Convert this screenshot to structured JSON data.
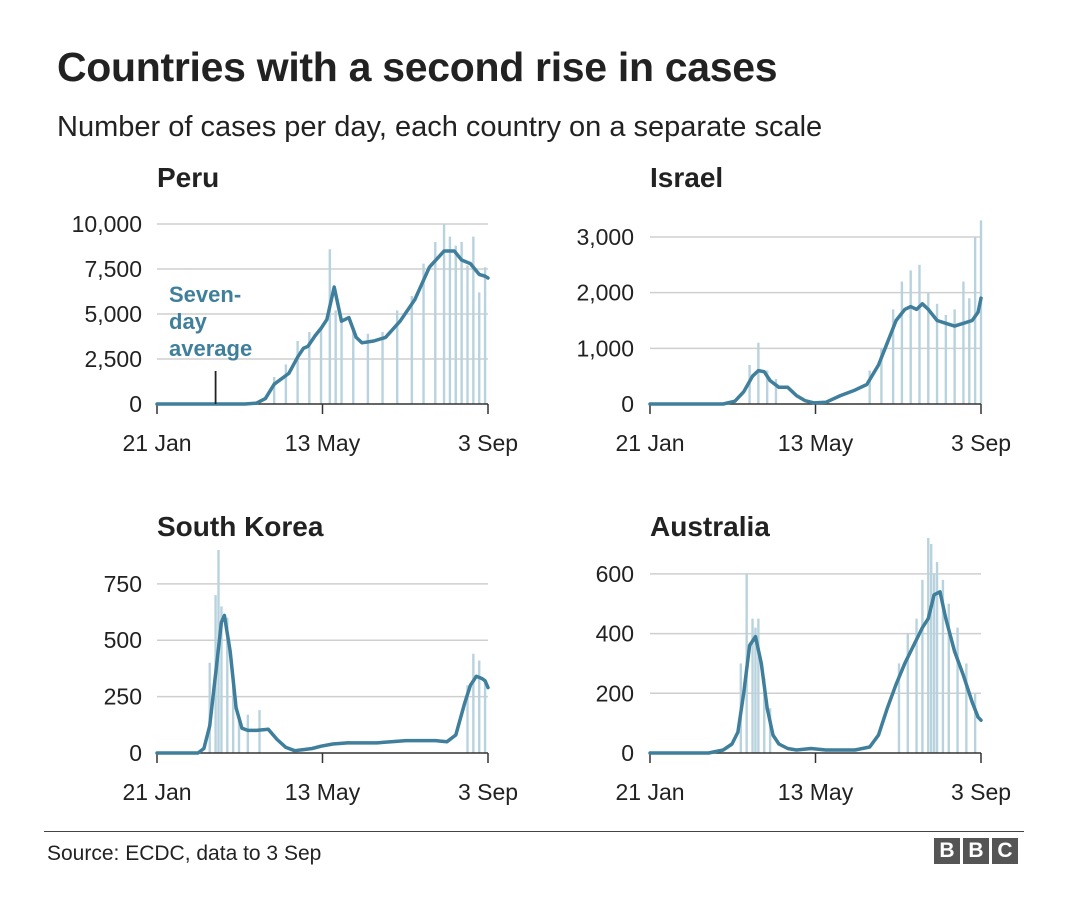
{
  "title": "Countries with a second rise in cases",
  "subtitle": "Number of cases per day, each country on a separate scale",
  "source": "Source: ECDC, data to 3 Sep",
  "logo": [
    "B",
    "B",
    "C"
  ],
  "colors": {
    "line": "#3f7f9c",
    "bars": "#b9d3de",
    "grid": "#cfcfcf",
    "axis": "#333333",
    "text": "#222222"
  },
  "chart_data": [
    {
      "type": "bar",
      "title": "Peru",
      "x_ticks": [
        "21 Jan",
        "13 May",
        "3 Sep"
      ],
      "xlim_days": [
        0,
        226
      ],
      "ylim": [
        0,
        10000
      ],
      "yticks": [
        0,
        2500,
        5000,
        7500,
        10000
      ],
      "ytick_labels": [
        "0",
        "2,500",
        "5,000",
        "7,500",
        "10,000"
      ],
      "series": [
        {
          "kind": "seven_day_average_line",
          "x_days": [
            0,
            60,
            68,
            74,
            80,
            85,
            90,
            96,
            100,
            103,
            108,
            112,
            116,
            121,
            126,
            131,
            136,
            140,
            148,
            156,
            166,
            176,
            186,
            196,
            203,
            208,
            214,
            220,
            224,
            226
          ],
          "values": [
            0,
            0,
            50,
            300,
            1100,
            1400,
            1700,
            2600,
            3100,
            3200,
            3800,
            4200,
            4700,
            6500,
            4600,
            4800,
            3700,
            3400,
            3500,
            3700,
            4600,
            5800,
            7600,
            8500,
            8500,
            8000,
            7800,
            7200,
            7100,
            7000
          ]
        },
        {
          "kind": "daily_bars",
          "x_days": [
            80,
            88,
            96,
            104,
            112,
            118,
            122,
            126,
            134,
            144,
            154,
            164,
            174,
            182,
            190,
            196,
            200,
            204,
            208,
            212,
            216,
            220,
            224
          ],
          "values": [
            1500,
            2200,
            3500,
            4000,
            4300,
            8600,
            5200,
            4800,
            4100,
            3900,
            4000,
            5200,
            6000,
            7800,
            9000,
            10000,
            9300,
            8800,
            9000,
            7700,
            9300,
            6200,
            7600
          ]
        }
      ],
      "annotation": {
        "text_lines": [
          "Seven-",
          "day",
          "average"
        ],
        "x_day": 40
      }
    },
    {
      "type": "bar",
      "title": "Israel",
      "x_ticks": [
        "21 Jan",
        "13 May",
        "3 Sep"
      ],
      "xlim_days": [
        0,
        226
      ],
      "ylim": [
        0,
        3000
      ],
      "yticks": [
        0,
        1000,
        2000,
        3000
      ],
      "ytick_labels": [
        "0",
        "1,000",
        "2,000",
        "3,000"
      ],
      "series": [
        {
          "kind": "seven_day_average_line",
          "x_days": [
            0,
            50,
            58,
            64,
            70,
            74,
            78,
            82,
            88,
            94,
            100,
            106,
            112,
            120,
            130,
            140,
            148,
            156,
            162,
            168,
            174,
            178,
            182,
            186,
            190,
            196,
            202,
            208,
            214,
            220,
            224,
            226
          ],
          "values": [
            0,
            0,
            50,
            220,
            500,
            600,
            580,
            420,
            300,
            300,
            150,
            60,
            20,
            30,
            150,
            250,
            350,
            700,
            1100,
            1500,
            1700,
            1750,
            1700,
            1800,
            1700,
            1500,
            1450,
            1400,
            1450,
            1500,
            1650,
            1900
          ]
        },
        {
          "kind": "daily_bars",
          "x_days": [
            68,
            74,
            80,
            86,
            150,
            158,
            166,
            172,
            178,
            184,
            190,
            196,
            202,
            208,
            214,
            218,
            222,
            226
          ],
          "values": [
            700,
            1100,
            600,
            450,
            600,
            1000,
            1700,
            2200,
            2400,
            2500,
            2000,
            1800,
            1600,
            1700,
            2200,
            1900,
            3000,
            3300
          ]
        }
      ]
    },
    {
      "type": "bar",
      "title": "South Korea",
      "x_ticks": [
        "21 Jan",
        "13 May",
        "3 Sep"
      ],
      "xlim_days": [
        0,
        226
      ],
      "ylim": [
        0,
        900
      ],
      "yticks": [
        0,
        250,
        500,
        750
      ],
      "ytick_labels": [
        "0",
        "250",
        "500",
        "750"
      ],
      "series": [
        {
          "kind": "seven_day_average_line",
          "x_days": [
            0,
            28,
            32,
            36,
            40,
            44,
            46,
            50,
            54,
            58,
            62,
            68,
            76,
            82,
            88,
            94,
            100,
            106,
            112,
            120,
            130,
            140,
            150,
            160,
            170,
            180,
            190,
            198,
            204,
            210,
            214,
            218,
            222,
            224,
            226
          ],
          "values": [
            0,
            0,
            20,
            120,
            350,
            580,
            610,
            450,
            200,
            110,
            100,
            100,
            105,
            60,
            25,
            10,
            15,
            20,
            30,
            40,
            45,
            45,
            45,
            50,
            55,
            55,
            55,
            50,
            80,
            220,
            300,
            340,
            330,
            320,
            290
          ]
        },
        {
          "kind": "daily_bars",
          "x_days": [
            36,
            40,
            42,
            44,
            48,
            52,
            56,
            62,
            70,
            212,
            216,
            220,
            224
          ],
          "values": [
            400,
            700,
            900,
            650,
            600,
            300,
            150,
            170,
            190,
            300,
            440,
            410,
            320
          ]
        }
      ]
    },
    {
      "type": "bar",
      "title": "Australia",
      "x_ticks": [
        "21 Jan",
        "13 May",
        "3 Sep"
      ],
      "xlim_days": [
        0,
        226
      ],
      "ylim": [
        0,
        700
      ],
      "yticks": [
        0,
        200,
        400,
        600
      ],
      "ytick_labels": [
        "0",
        "200",
        "400",
        "600"
      ],
      "series": [
        {
          "kind": "seven_day_average_line",
          "x_days": [
            0,
            40,
            50,
            56,
            60,
            64,
            68,
            72,
            76,
            80,
            84,
            88,
            94,
            100,
            110,
            120,
            130,
            140,
            150,
            156,
            162,
            168,
            174,
            180,
            186,
            190,
            194,
            198,
            202,
            208,
            214,
            220,
            224,
            226
          ],
          "values": [
            0,
            0,
            10,
            30,
            70,
            200,
            360,
            390,
            300,
            150,
            60,
            30,
            15,
            10,
            15,
            10,
            10,
            10,
            20,
            60,
            150,
            230,
            300,
            360,
            420,
            450,
            530,
            540,
            450,
            340,
            260,
            170,
            120,
            110
          ]
        },
        {
          "kind": "daily_bars",
          "x_days": [
            62,
            66,
            70,
            72,
            74,
            78,
            82,
            170,
            176,
            182,
            186,
            190,
            192,
            194,
            196,
            200,
            204,
            210,
            216,
            222
          ],
          "values": [
            300,
            600,
            450,
            420,
            450,
            250,
            150,
            300,
            400,
            450,
            580,
            720,
            700,
            600,
            640,
            580,
            500,
            420,
            300,
            200
          ]
        }
      ]
    }
  ]
}
